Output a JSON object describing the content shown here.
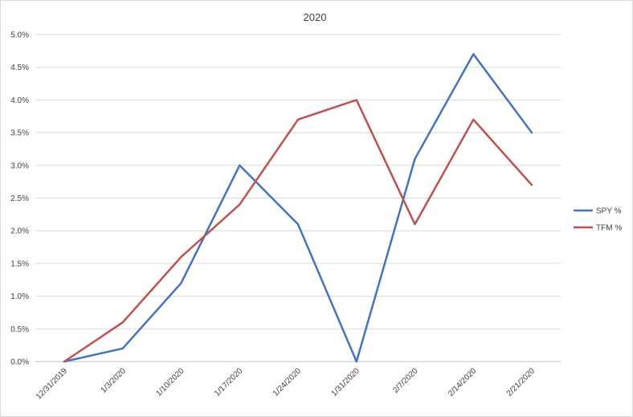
{
  "chart_data": {
    "type": "line",
    "title": "2020",
    "xlabel": "",
    "ylabel": "",
    "categories": [
      "12/31/2019",
      "1/3/2020",
      "1/10/2020",
      "1/17/2020",
      "1/24/2020",
      "1/31/2020",
      "2/7/2020",
      "2/14/2020",
      "2/21/2020"
    ],
    "series": [
      {
        "name": "SPY %",
        "color": "#4472c4",
        "values": [
          0.0,
          0.2,
          1.2,
          3.0,
          2.1,
          0.0,
          3.1,
          4.7,
          3.5
        ]
      },
      {
        "name": "TFM %",
        "color": "#c0504d",
        "values": [
          0.0,
          0.6,
          1.6,
          2.4,
          3.7,
          4.0,
          2.1,
          3.7,
          2.7
        ]
      }
    ],
    "ylim": [
      0,
      5
    ],
    "yticks": [
      "0.0%",
      "0.5%",
      "1.0%",
      "1.5%",
      "2.0%",
      "2.5%",
      "3.0%",
      "3.5%",
      "4.0%",
      "4.5%",
      "5.0%"
    ],
    "grid": true,
    "legend_position": "right"
  }
}
